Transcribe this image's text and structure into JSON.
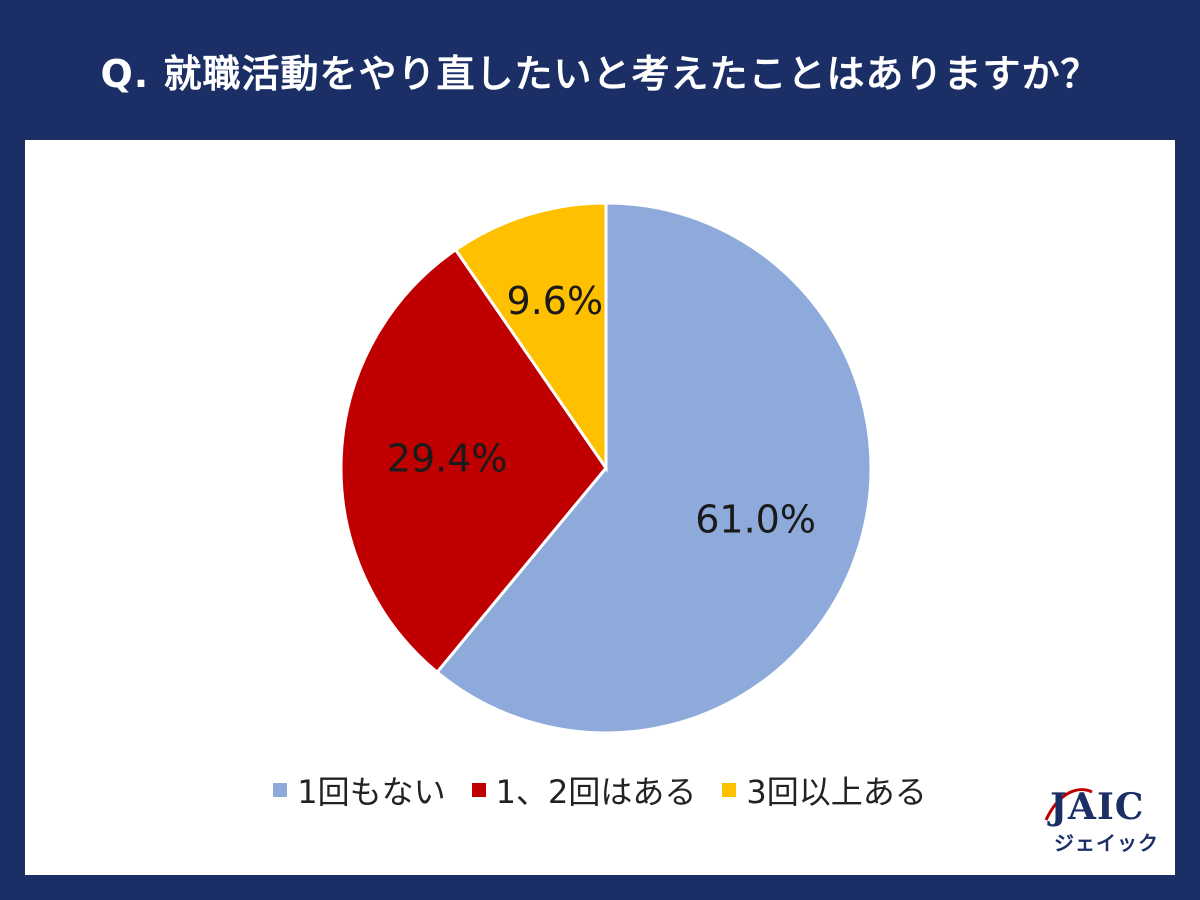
{
  "header": {
    "title": "Q. 就職活動をやり直したいと考えたことはありますか？"
  },
  "chart_data": {
    "type": "pie",
    "title": "",
    "slices": [
      {
        "label": "1回もない",
        "value": 61.0,
        "display": "61.0%",
        "color": "#8eaadb"
      },
      {
        "label": "1、2回はある",
        "value": 29.4,
        "display": "29.4%",
        "color": "#c00000"
      },
      {
        "label": "3回以上ある",
        "value": 9.6,
        "display": "9.6%",
        "color": "#ffc000"
      }
    ],
    "legend_position": "bottom"
  },
  "logo": {
    "main": "JAIC",
    "sub": "ジェイック"
  }
}
